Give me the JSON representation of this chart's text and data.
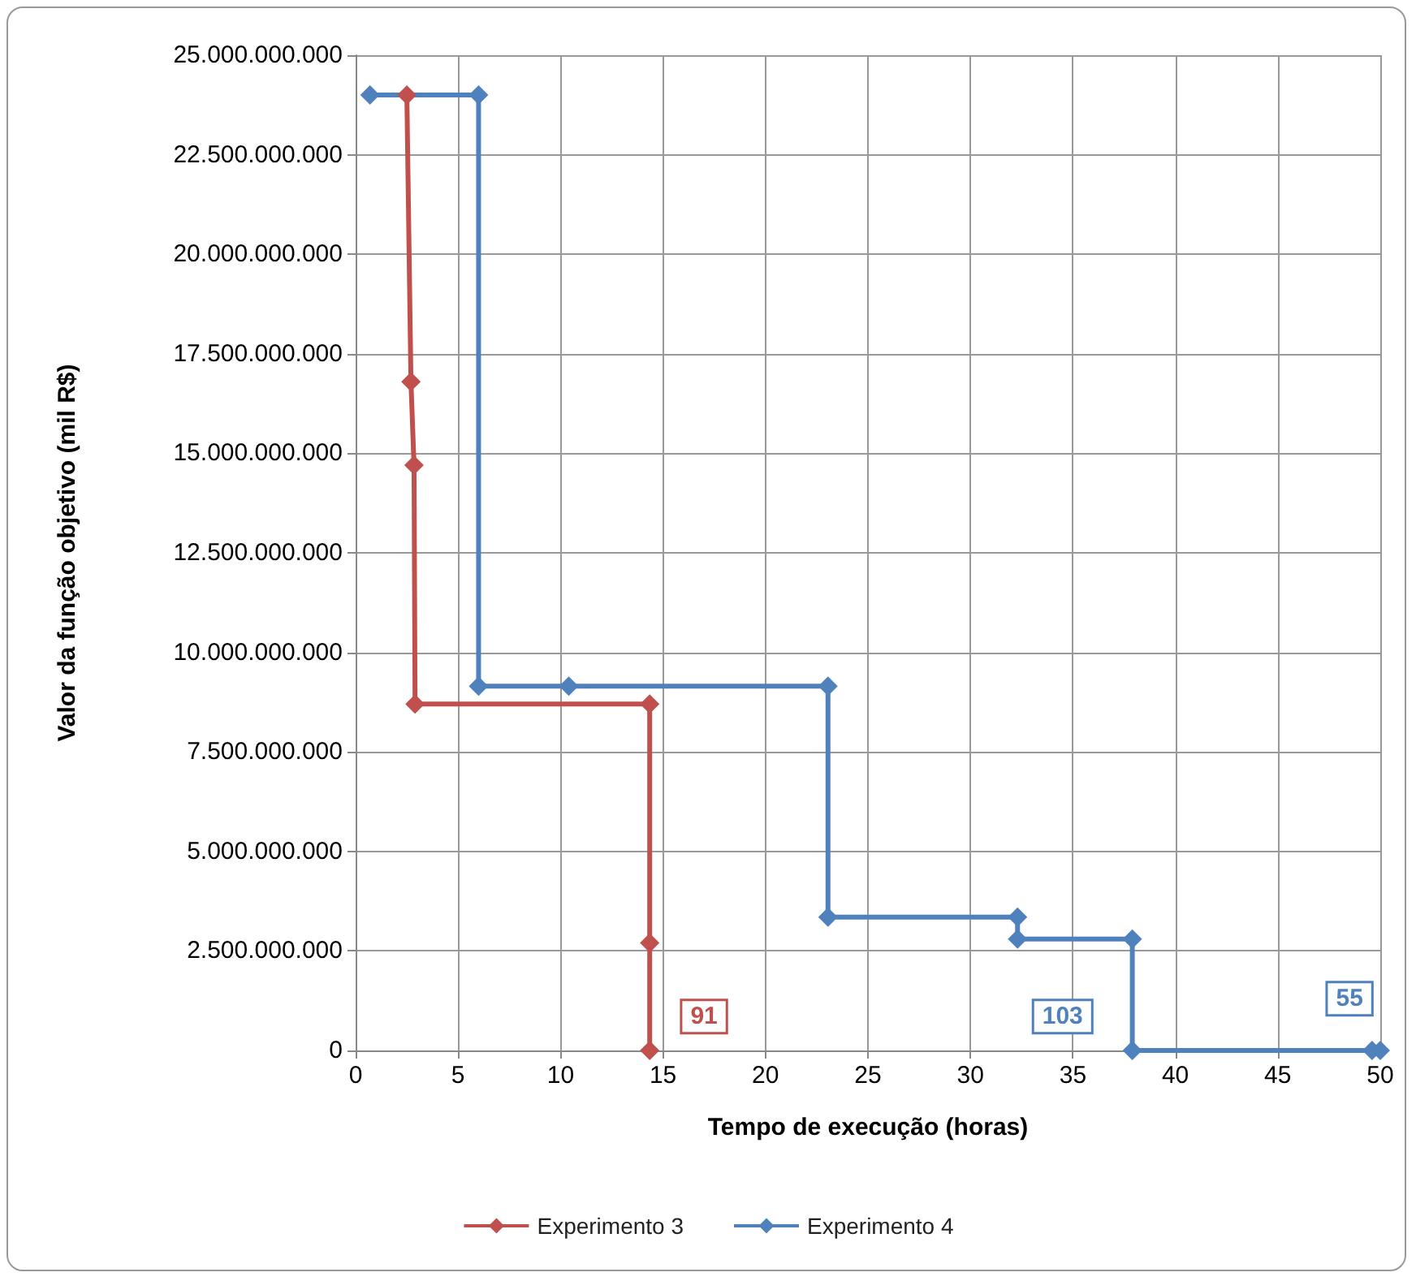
{
  "chart_data": {
    "type": "line",
    "xlabel": "Tempo de execução (horas)",
    "ylabel": "Valor da função objetivo (mil R$)",
    "xlim": [
      0,
      50
    ],
    "xticks": [
      0,
      5,
      10,
      15,
      20,
      25,
      30,
      35,
      40,
      45,
      50
    ],
    "ylim": [
      0,
      25000000000
    ],
    "yticks": [
      {
        "value": 0,
        "label": "0"
      },
      {
        "value": 2500000000,
        "label": "2.500.000.000"
      },
      {
        "value": 5000000000,
        "label": "5.000.000.000"
      },
      {
        "value": 7500000000,
        "label": "7.500.000.000"
      },
      {
        "value": 10000000000,
        "label": "10.000.000.000"
      },
      {
        "value": 12500000000,
        "label": "12.500.000.000"
      },
      {
        "value": 15000000000,
        "label": "15.000.000.000"
      },
      {
        "value": 17500000000,
        "label": "17.500.000.000"
      },
      {
        "value": 20000000000,
        "label": "20.000.000.000"
      },
      {
        "value": 22500000000,
        "label": "22.500.000.000"
      },
      {
        "value": 25000000000,
        "label": "25.000.000.000"
      }
    ],
    "annotations": [
      {
        "text": "91",
        "x": 17,
        "y": 850000000
      },
      {
        "text": "103",
        "x": 34.5,
        "y": 850000000
      },
      {
        "text": "55",
        "x": 48.5,
        "y": 1300000000
      }
    ],
    "grid": true,
    "legend": "bottom",
    "marker": "diamond",
    "line_style": "solid",
    "series": [
      {
        "name": "Experimento 3",
        "color": "#c0504d",
        "x": [
          2.5,
          2.7,
          2.85,
          2.9,
          14.35,
          14.35,
          14.35
        ],
        "values": [
          24000000000,
          16800000000,
          14700000000,
          8700000000,
          8700000000,
          2700000000,
          0
        ]
      },
      {
        "name": "Experimento 4",
        "color": "#4f81bd",
        "x": [
          0.7,
          6.0,
          6.0,
          10.4,
          23.05,
          23.05,
          32.3,
          32.3,
          37.9,
          37.9,
          49.6,
          50
        ],
        "values": [
          24000000000,
          24000000000,
          9150000000,
          9150000000,
          9150000000,
          3350000000,
          3350000000,
          2800000000,
          2800000000,
          0,
          0,
          0
        ]
      }
    ]
  }
}
